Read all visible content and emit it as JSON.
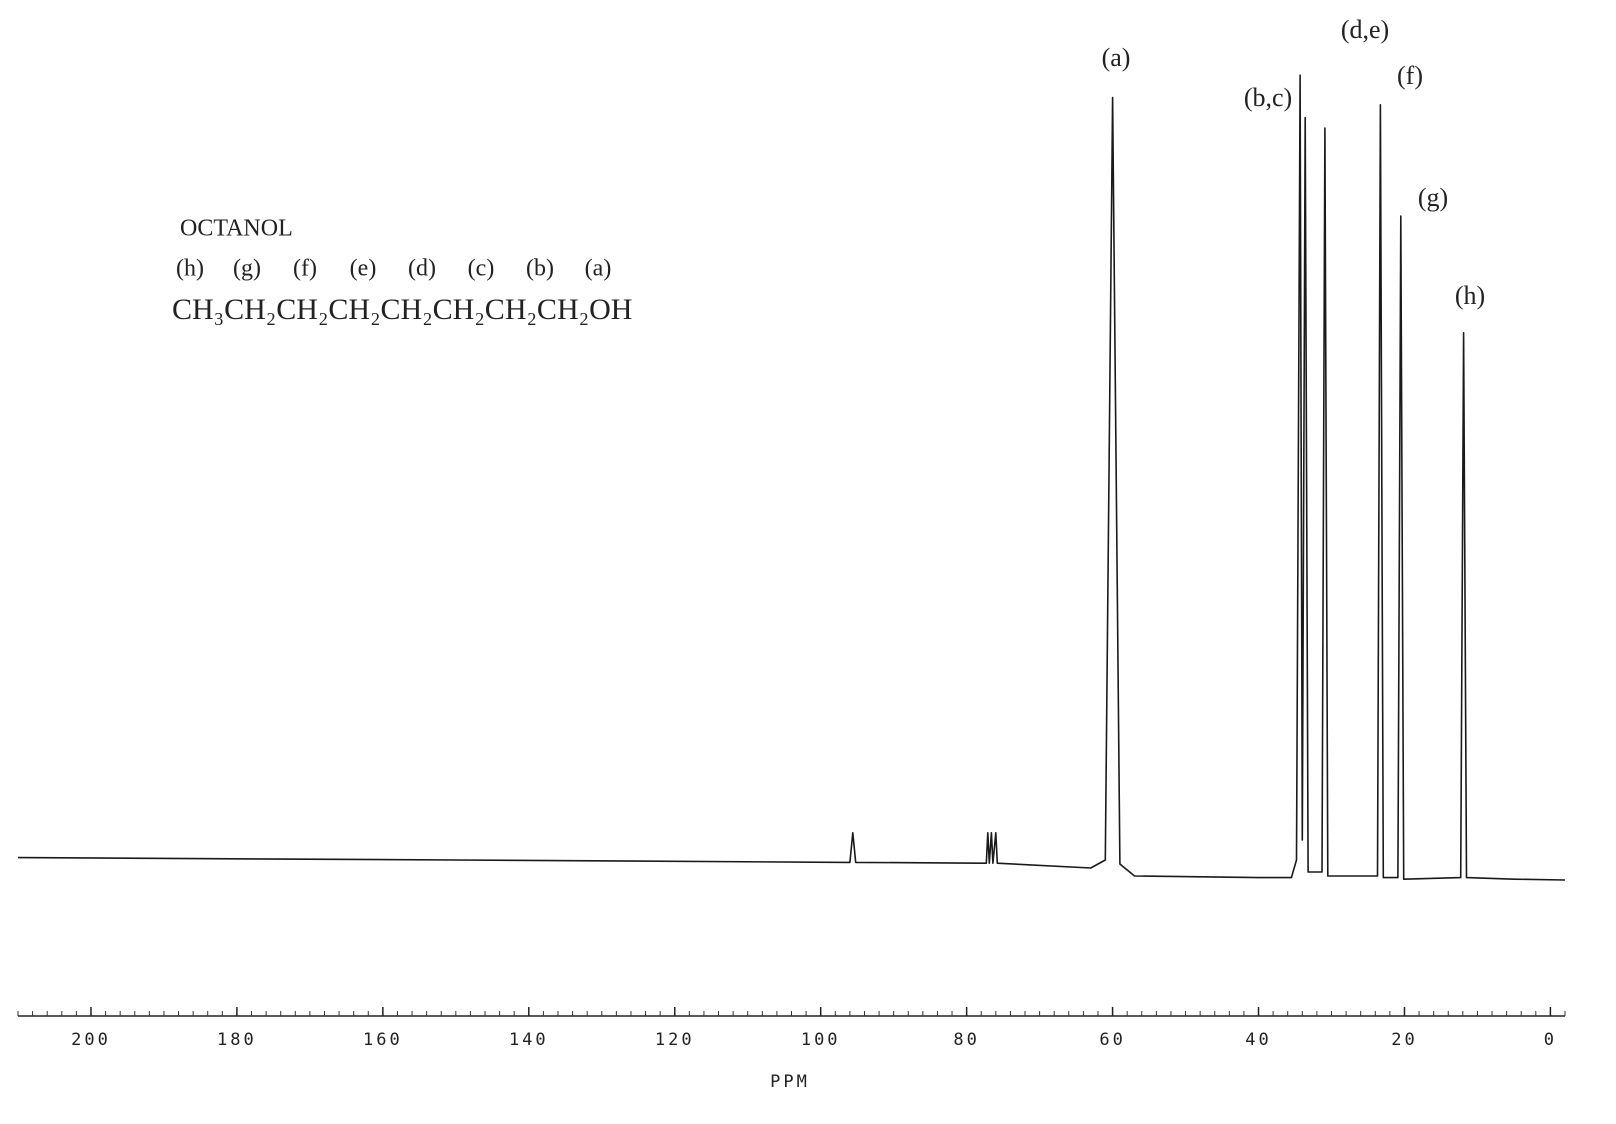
{
  "chart_data": {
    "type": "line",
    "color": "#1a1a1a",
    "x_label": "PPM",
    "xlim": [
      210,
      -2
    ],
    "ylim": [
      0,
      110
    ],
    "xticks": [
      200,
      180,
      160,
      140,
      120,
      100,
      80,
      60,
      40,
      20,
      0
    ],
    "x": [
      210,
      150,
      96,
      95.6,
      95.2,
      78,
      77.3,
      77.1,
      76.9,
      76.6,
      76.4,
      76.0,
      75.8,
      63,
      61.0,
      60,
      59.0,
      57,
      40,
      35.5,
      34.8,
      34.3,
      34.0,
      33.6,
      33.2,
      31.3,
      30.9,
      30.5,
      23.7,
      23.3,
      22.9,
      20.9,
      20.5,
      20.1,
      12.3,
      11.9,
      11.5,
      5,
      -2
    ],
    "values": [
      2.8,
      2.5,
      2.2,
      5.9,
      2.2,
      2.1,
      2.1,
      5.9,
      2.1,
      5.9,
      2.1,
      5.9,
      2.1,
      1.5,
      2.5,
      97.8,
      2.0,
      0.5,
      0.3,
      0.3,
      2.5,
      100.6,
      5,
      95.3,
      1.0,
      1.0,
      94,
      0.5,
      0.5,
      96.9,
      0.3,
      0.3,
      83,
      0.1,
      0.3,
      68.4,
      0.3,
      0.1,
      0.0
    ],
    "annotations": [
      "(a)",
      "(b,c)",
      "(d,e)",
      "(f)",
      "(g)",
      "(h)"
    ],
    "structure": {
      "name": "OCTANOL",
      "atom_labels": [
        "(h)",
        "(g)",
        "(f)",
        "(e)",
        "(d)",
        "(c)",
        "(b)",
        "(a)"
      ],
      "formula": "CH₃CH₂CH₂CH₂CH₂CH₂CH₂CH₂OH"
    }
  }
}
